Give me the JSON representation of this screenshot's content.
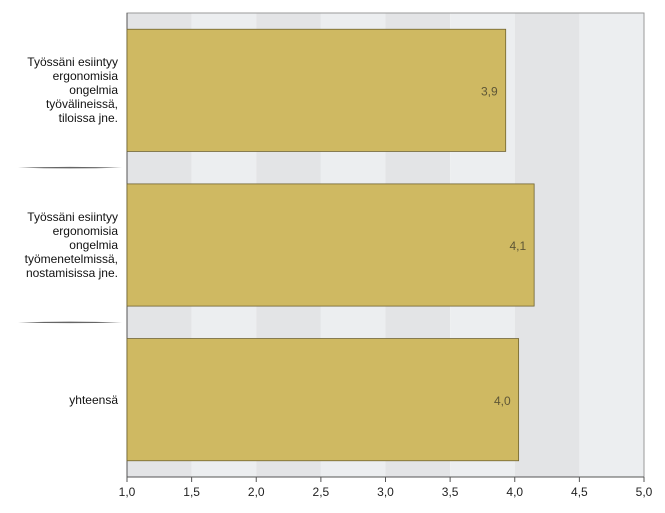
{
  "chart_data": {
    "type": "bar",
    "orientation": "horizontal",
    "categories": [
      "Työssäni esiintyy\nergonomisia\nongelmia\ntyövälineissä,\ntiloissa jne.",
      "Työssäni esiintyy\nergonomisia\nongelmia\ntyömenetelmissä,\nnostamisissa jne.",
      "yhteensä"
    ],
    "values": [
      3.93,
      4.15,
      4.03
    ],
    "value_labels": [
      "3,9",
      "4,1",
      "4,0"
    ],
    "color": "#cfb962",
    "xlim": [
      1,
      5
    ],
    "xticks": [
      {
        "value": 1,
        "label": "1,0"
      },
      {
        "value": 1.5,
        "label": "1,5"
      },
      {
        "value": 2,
        "label": "2,0"
      },
      {
        "value": 2.5,
        "label": "2,5"
      },
      {
        "value": 3,
        "label": "3,0"
      },
      {
        "value": 3.5,
        "label": "3,5"
      },
      {
        "value": 4,
        "label": "4,0"
      },
      {
        "value": 4.5,
        "label": "4,5"
      },
      {
        "value": 5,
        "label": "5,0"
      }
    ]
  }
}
